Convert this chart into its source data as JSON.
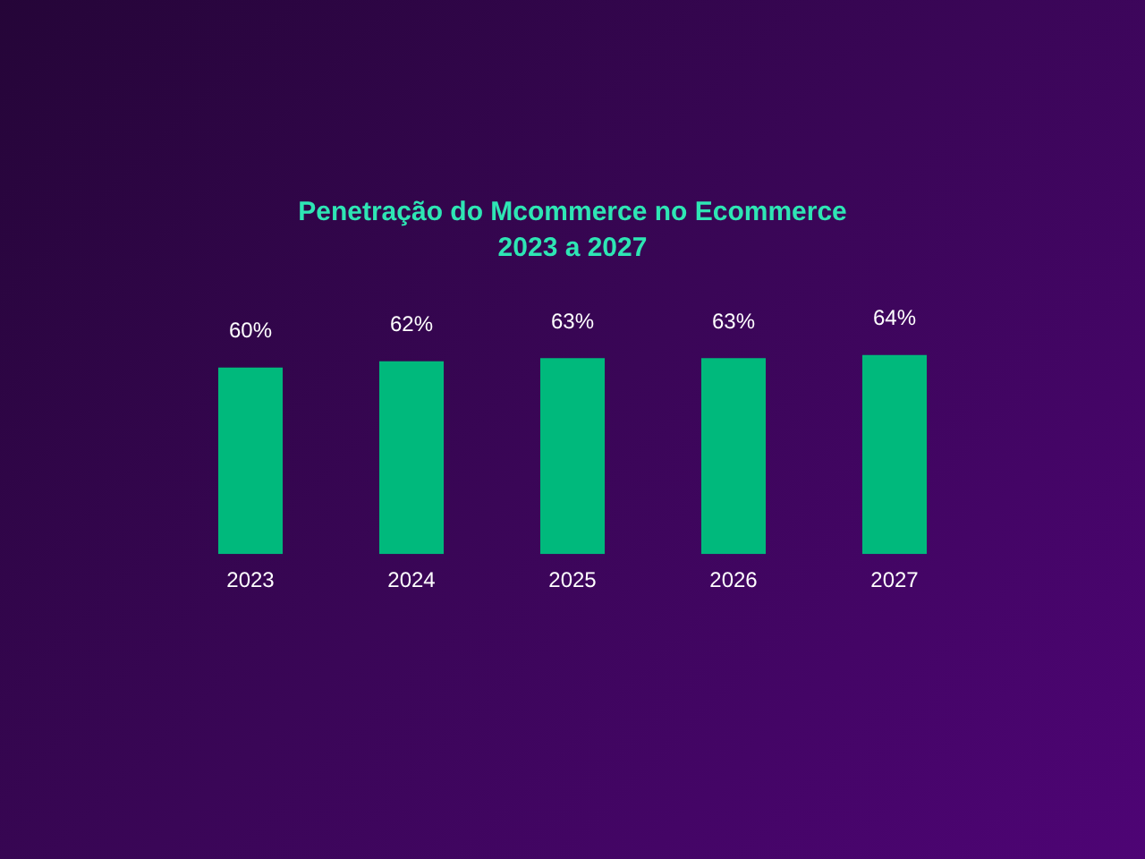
{
  "chart_data": {
    "type": "bar",
    "title": "Penetração do Mcommerce no Ecommerce",
    "subtitle": "2023 a 2027",
    "categories": [
      "2023",
      "2024",
      "2025",
      "2026",
      "2027"
    ],
    "values": [
      60,
      62,
      63,
      63,
      64
    ],
    "value_labels": [
      "60%",
      "62%",
      "63%",
      "63%",
      "64%"
    ],
    "color": "#00b97c",
    "grid": false,
    "legend": false
  }
}
